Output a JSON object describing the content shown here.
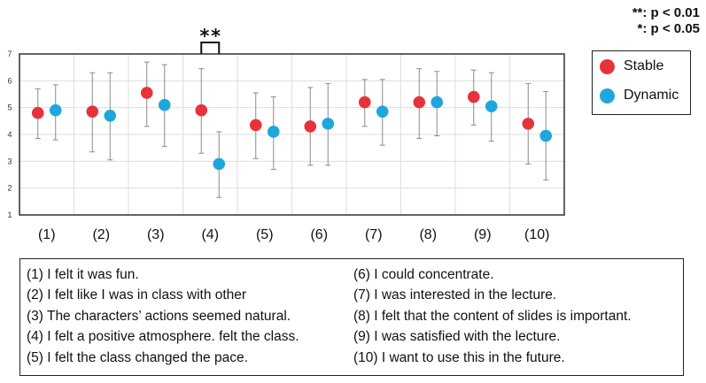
{
  "significance_note": {
    "line1": "**: p < 0.01",
    "line2": "*: p < 0.05"
  },
  "legend": [
    {
      "label": "Stable",
      "color": "#e8323a"
    },
    {
      "label": "Dynamic",
      "color": "#1ea7dc"
    }
  ],
  "chart_data": {
    "type": "scatter",
    "categories": [
      "(1)",
      "(2)",
      "(3)",
      "(4)",
      "(5)",
      "(6)",
      "(7)",
      "(8)",
      "(9)",
      "(10)"
    ],
    "ylim": [
      1,
      7
    ],
    "yticks": [
      "1",
      "2",
      "3",
      "4",
      "5",
      "6",
      "7"
    ],
    "grid": true,
    "legend_position": "right",
    "series": [
      {
        "name": "Stable",
        "color": "#e8323a",
        "values": [
          4.8,
          4.85,
          5.55,
          4.9,
          4.35,
          4.3,
          5.2,
          5.2,
          5.4,
          4.4
        ],
        "err_low": [
          3.85,
          3.35,
          4.3,
          3.3,
          3.1,
          2.85,
          4.3,
          3.85,
          4.35,
          2.9
        ],
        "err_high": [
          5.7,
          6.3,
          6.7,
          6.45,
          5.55,
          5.75,
          6.05,
          6.45,
          6.4,
          5.9
        ]
      },
      {
        "name": "Dynamic",
        "color": "#1ea7dc",
        "values": [
          4.9,
          4.7,
          5.1,
          2.9,
          4.1,
          4.4,
          4.85,
          5.2,
          5.05,
          3.95
        ],
        "err_low": [
          3.8,
          3.05,
          3.55,
          1.65,
          2.7,
          2.85,
          3.6,
          3.95,
          3.75,
          2.3
        ],
        "err_high": [
          5.85,
          6.3,
          6.6,
          4.1,
          5.4,
          5.9,
          6.05,
          6.35,
          6.3,
          5.6
        ]
      }
    ],
    "annotations": [
      {
        "category": "(4)",
        "text": "**"
      }
    ]
  },
  "notes": {
    "left": [
      "(1) I felt it was fun.",
      "(2) I felt like I was in class with other",
      "(3) The characters’ actions seemed natural.",
      "(4) I felt a positive atmosphere. felt the class.",
      "(5) I felt the class changed the pace."
    ],
    "right": [
      "(6) I could concentrate.",
      "(7) I was interested in the lecture.",
      "(8) I felt that the content of slides is important.",
      "(9) I was satisfied with the lecture.",
      "(10) I want to use this in the future."
    ]
  }
}
